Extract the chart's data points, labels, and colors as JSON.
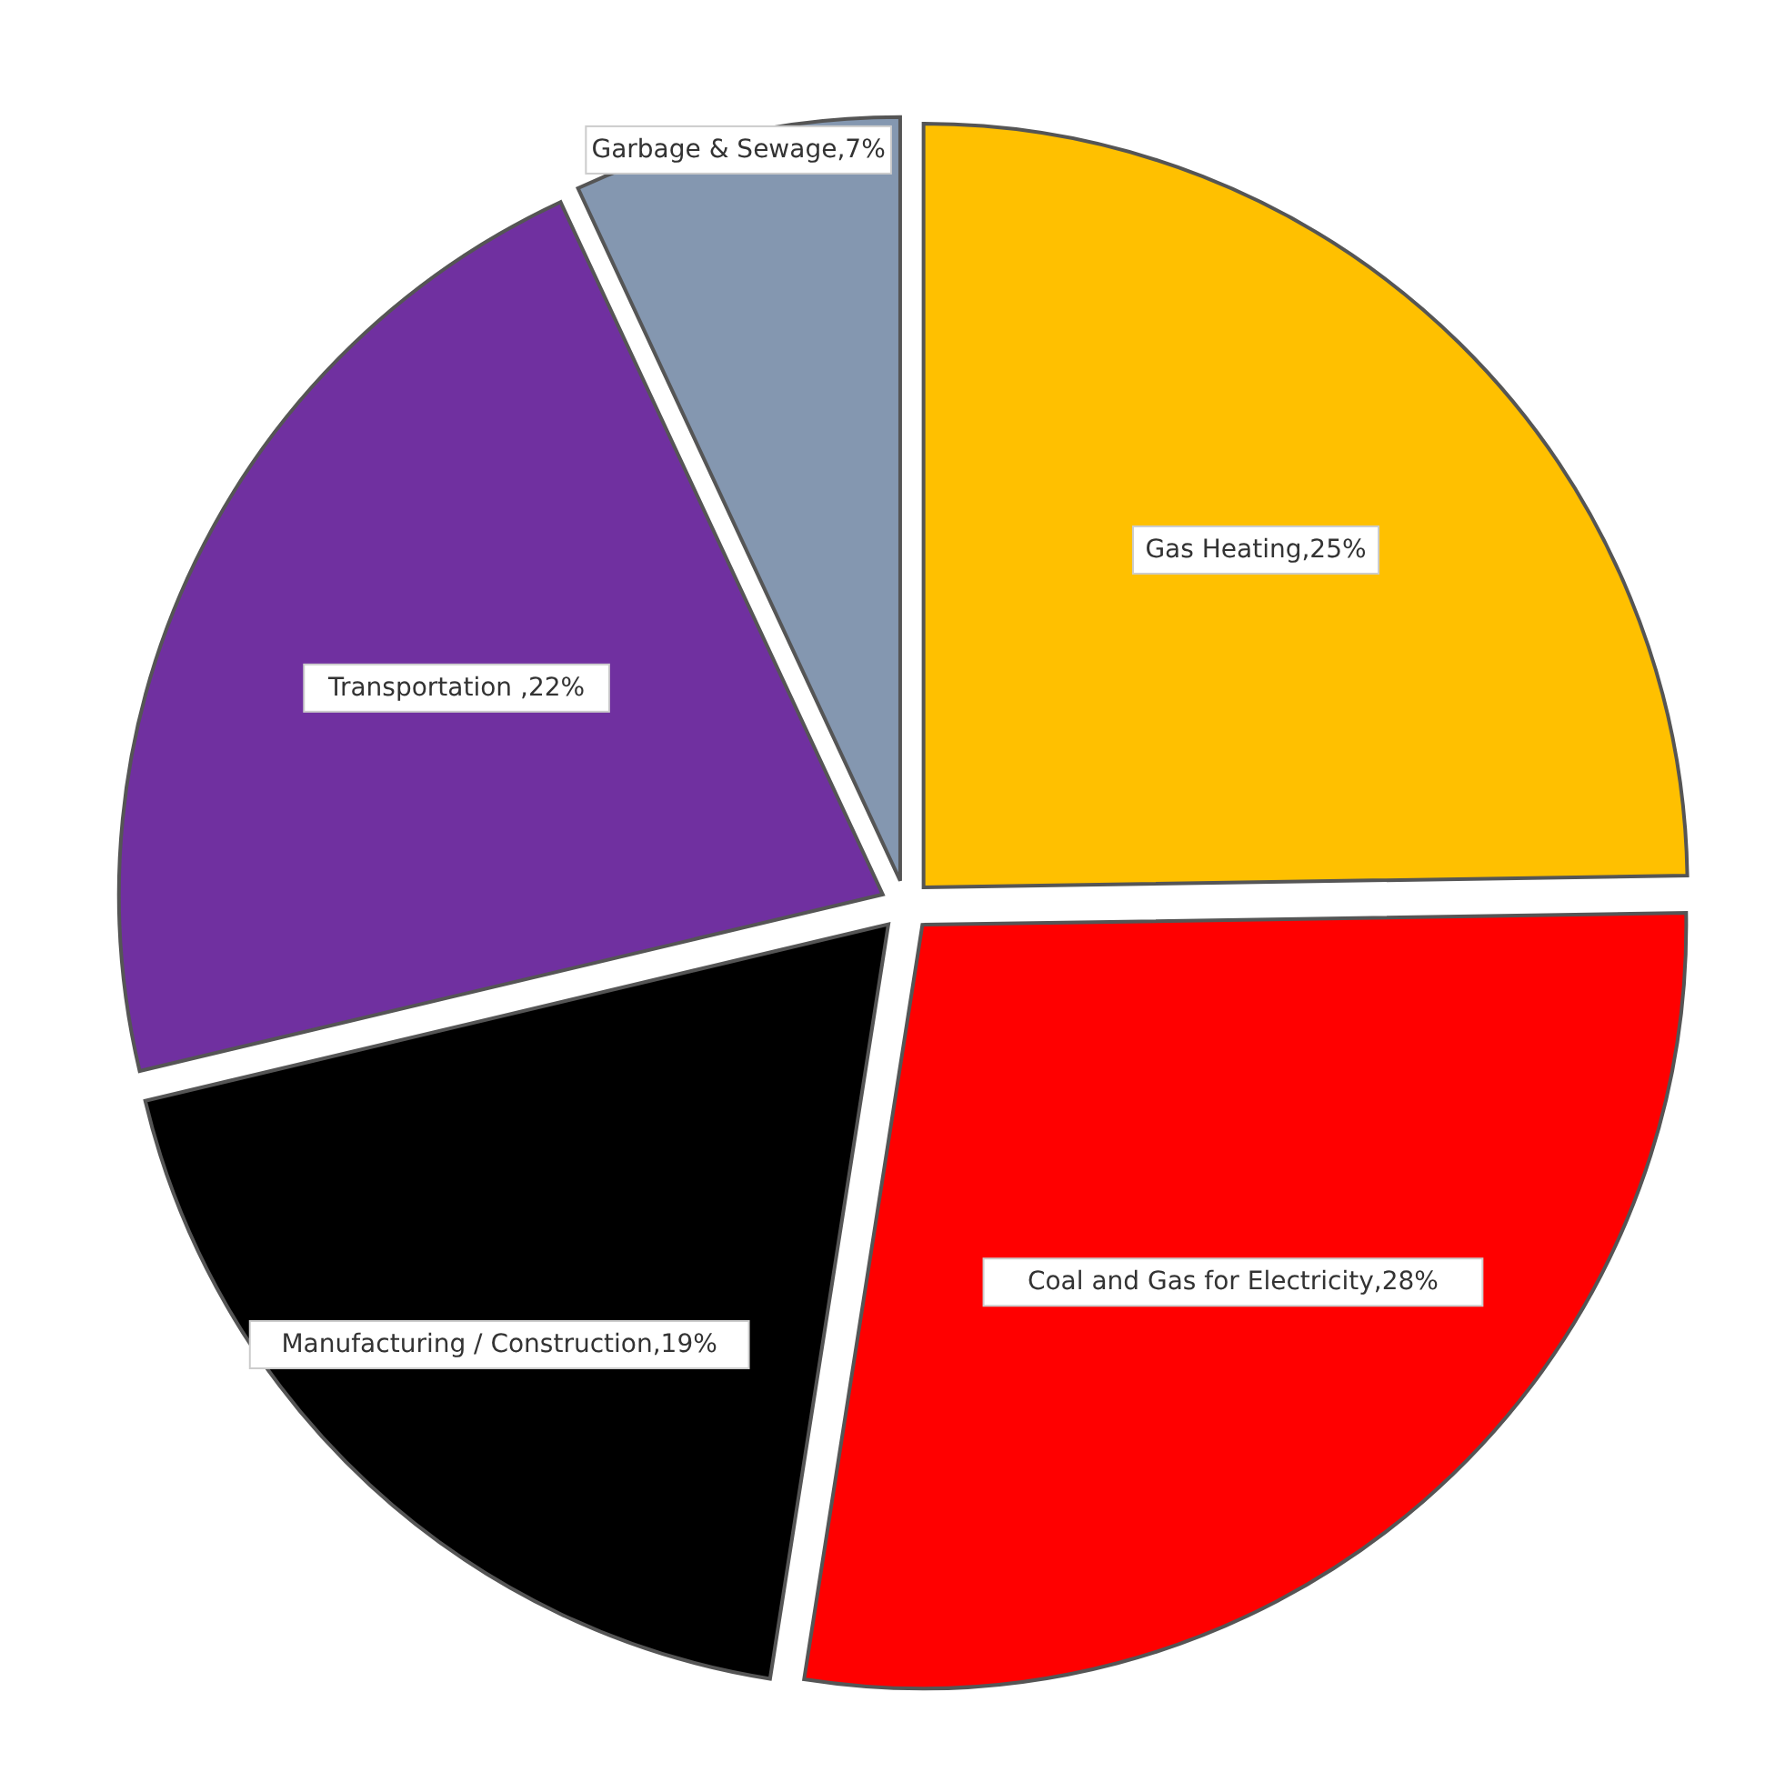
{
  "chart_data": {
    "type": "pie",
    "categories": [
      "Gas Heating",
      "Coal and Gas for Electricity",
      "Manufacturing / Construction",
      "Transportation",
      "Garbage & Sewage"
    ],
    "values": [
      25,
      28,
      19,
      22,
      7
    ],
    "colors": [
      "#ffc000",
      "#ff0000",
      "#000000",
      "#7030a0",
      "#8497b0"
    ],
    "value_labels": [
      ",25%",
      ",28%",
      ",19%",
      " ,22%",
      ",7%"
    ],
    "legend": false
  }
}
